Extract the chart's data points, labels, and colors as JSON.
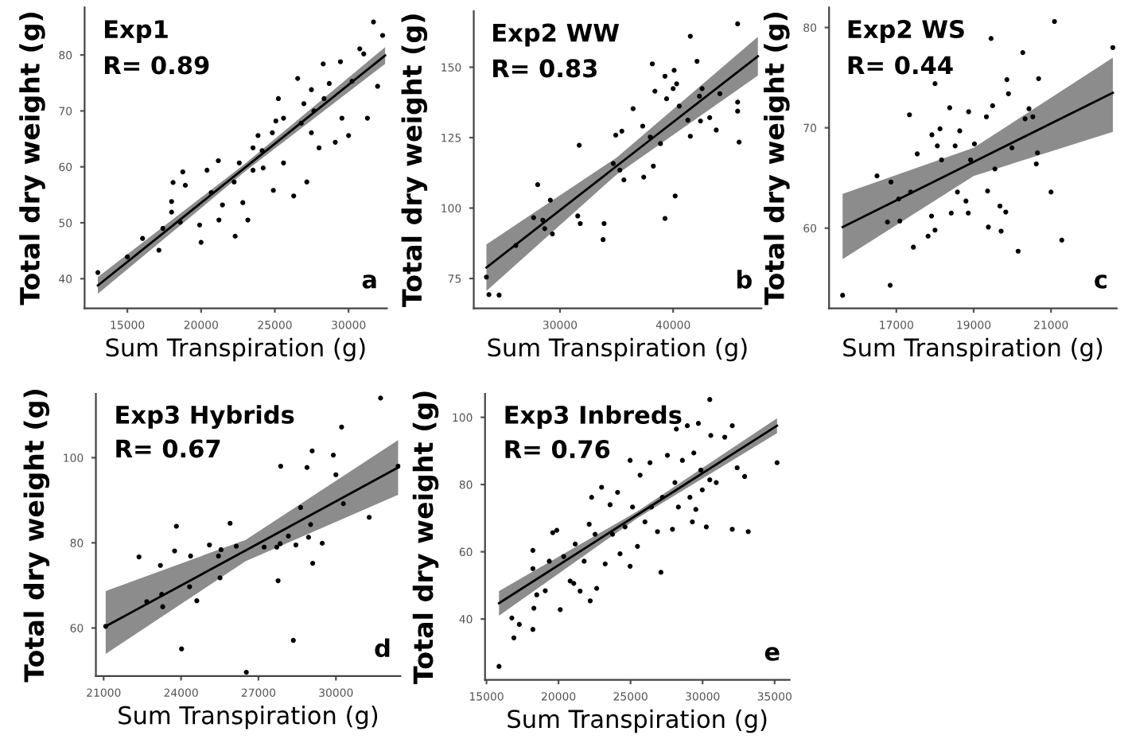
{
  "chart_data": [
    {
      "type": "scatter",
      "title": "Exp1",
      "subtitle": "R= 0.89",
      "xlabel": "Sum Transpiration (g)",
      "ylabel": "Total dry weight (g)",
      "annotations": [
        "a"
      ],
      "legend": false,
      "xlim": [
        12100,
        32600
      ],
      "ylim": [
        34.7,
        88.5
      ],
      "xticks": [
        15000,
        20000,
        25000,
        30000
      ],
      "yticks": [
        40,
        50,
        60,
        70,
        80
      ],
      "series": [
        {
          "type": "scatter",
          "marker": "circle",
          "color": "#000000",
          "x": [
            13000,
            15000,
            16030,
            17140,
            17410,
            18000,
            18100,
            18760,
            18930,
            18590,
            19900,
            20000,
            20400,
            20690,
            21210,
            21450,
            21170,
            22310,
            22240,
            22590,
            23170,
            23520,
            23860,
            24140,
            24830,
            24900,
            25070,
            25240,
            25590,
            26280,
            26550,
            26790,
            27170,
            27480,
            27480,
            28000,
            28280,
            28340,
            28690,
            29100,
            29450,
            29550,
            30000,
            30240,
            30760,
            31030,
            31280,
            31690,
            31970,
            32310,
            18000,
            22830,
            26970,
            25590,
            23520,
            27650,
            24210
          ],
          "values": [
            41.1,
            43.9,
            47.2,
            45.1,
            49,
            53.8,
            57.2,
            59.1,
            56.7,
            50.1,
            49.6,
            46.5,
            59.4,
            55.4,
            50.5,
            53.2,
            61.1,
            47.6,
            57.3,
            60.7,
            50.5,
            59.4,
            65.6,
            62.9,
            66.1,
            55.8,
            68.2,
            72.2,
            60.7,
            54.8,
            75.8,
            67.8,
            57.3,
            73.8,
            66.1,
            63.4,
            78.4,
            72.2,
            74.9,
            64.4,
            78.8,
            68.7,
            65.6,
            75.3,
            81.1,
            80.2,
            68.7,
            85.9,
            74.4,
            83.5,
            51.9,
            53.6,
            71.3,
            68.7,
            63.4,
            70,
            59.8
          ]
        },
        {
          "type": "line",
          "color": "#000000",
          "x": [
            13000,
            23000,
            32480
          ],
          "values": [
            38.8,
            59.9,
            79.9
          ],
          "lower": [
            37.3,
            59.2,
            78.4
          ],
          "upper": [
            40.3,
            60.6,
            81.4
          ]
        }
      ]
    },
    {
      "type": "scatter",
      "title": "Exp2 WW",
      "subtitle": "R= 0.83",
      "xlabel": "Sum Transpiration (g)",
      "ylabel": "Total dry weight (g)",
      "annotations": [
        "b"
      ],
      "legend": false,
      "xlim": [
        22380,
        47800
      ],
      "ylim": [
        64.4,
        169.9
      ],
      "xticks": [
        30000,
        40000
      ],
      "yticks": [
        75,
        100,
        125,
        150
      ],
      "series": [
        {
          "type": "scatter",
          "marker": "circle",
          "color": "#000000",
          "x": [
            23500,
            23720,
            24620,
            26100,
            27670,
            28030,
            28480,
            28650,
            29150,
            29330,
            31570,
            31700,
            31790,
            33810,
            33900,
            34710,
            34930,
            35290,
            35470,
            35650,
            36460,
            37310,
            37400,
            37980,
            38160,
            38250,
            38390,
            38880,
            39280,
            39420,
            39280,
            40000,
            40090,
            40180,
            40310,
            40540,
            41300,
            41520,
            41520,
            42110,
            42330,
            42420,
            42560,
            43230,
            43810,
            44130,
            45700,
            45700,
            45700,
            45830
          ],
          "values": [
            75.5,
            69.3,
            69.1,
            86.7,
            96.6,
            108.3,
            95.7,
            92.7,
            102.8,
            90.8,
            97.2,
            122.3,
            94.5,
            88.8,
            94.5,
            115.8,
            125.9,
            113.5,
            127.3,
            110,
            135.3,
            129.1,
            111,
            125.2,
            151.2,
            114.9,
            141.5,
            122.9,
            146.8,
            138.8,
            96.3,
            142.4,
            148.9,
            104.3,
            144.1,
            136.2,
            131.2,
            125.5,
            161,
            152.1,
            139.7,
            130.9,
            142.4,
            132.1,
            127.7,
            140.6,
            165.4,
            137.6,
            134.4,
            123.4
          ]
        },
        {
          "type": "line",
          "color": "#000000",
          "x": [
            23500,
            35000,
            47490
          ],
          "values": [
            78.9,
            114.9,
            153.9
          ],
          "lower": [
            70.6,
            111.9,
            147.0
          ],
          "upper": [
            87.1,
            117.9,
            160.8
          ]
        }
      ]
    },
    {
      "type": "scatter",
      "title": "Exp2 WS",
      "subtitle": "R= 0.44",
      "xlabel": "Sum Transpiration (g)",
      "ylabel": "Total dry weight (g)",
      "annotations": [
        "c"
      ],
      "legend": false,
      "xlim": [
        15260,
        22700
      ],
      "ylim": [
        52.0,
        82.0
      ],
      "xticks": [
        17000,
        19000,
        21000
      ],
      "yticks": [
        60,
        70,
        80
      ],
      "series": [
        {
          "type": "scatter",
          "marker": "circle",
          "color": "#000000",
          "x": [
            15610,
            16500,
            16860,
            16770,
            16840,
            17060,
            17090,
            17340,
            17370,
            17440,
            17540,
            17820,
            17910,
            17920,
            18000,
            18000,
            18060,
            18130,
            18170,
            18380,
            18420,
            18520,
            18580,
            18640,
            18800,
            18860,
            18870,
            18920,
            19020,
            19330,
            19360,
            19380,
            19450,
            19490,
            19550,
            19680,
            19710,
            19830,
            19860,
            19900,
            19990,
            20150,
            20270,
            20330,
            20430,
            20530,
            20620,
            20650,
            20680,
            21000,
            21090,
            21280,
            22600
          ],
          "values": [
            53.3,
            65.2,
            64.6,
            60.6,
            54.3,
            62.9,
            60.7,
            71.3,
            63.6,
            58.1,
            67.4,
            59.2,
            61.2,
            69.3,
            74.4,
            59.8,
            68.2,
            69.9,
            66.8,
            72,
            61.5,
            68.2,
            63.6,
            69.7,
            62.7,
            61.5,
            71.6,
            66.8,
            68.4,
            71.1,
            63.7,
            60.1,
            78.9,
            72.2,
            65.9,
            62.2,
            59.7,
            61.6,
            74.8,
            73.4,
            68,
            57.7,
            77.5,
            70.9,
            71.9,
            71.1,
            66.4,
            67.5,
            74.9,
            63.6,
            80.6,
            58.8,
            78
          ]
        },
        {
          "type": "line",
          "color": "#000000",
          "x": [
            15610,
            19000,
            22600
          ],
          "values": [
            60.1,
            66.6,
            73.5
          ],
          "lower": [
            56.9,
            65.2,
            69.6
          ],
          "upper": [
            63.4,
            68.0,
            77.0
          ]
        }
      ]
    },
    {
      "type": "scatter",
      "title": "Exp3 Hybrids",
      "subtitle": "R= 0.67",
      "xlabel": "Sum Transpiration (g)",
      "ylabel": "Total dry weight (g)",
      "annotations": [
        "d"
      ],
      "legend": false,
      "xlim": [
        20700,
        32500
      ],
      "ylim": [
        48.7,
        115
      ],
      "xticks": [
        21000,
        24000,
        27000,
        30000
      ],
      "yticks": [
        60,
        80,
        100
      ],
      "series": [
        {
          "type": "scatter",
          "marker": "circle",
          "color": "#000000",
          "x": [
            21080,
            22370,
            22670,
            23200,
            23250,
            23290,
            23750,
            23820,
            24020,
            24330,
            24370,
            24610,
            25100,
            25450,
            25510,
            25550,
            25900,
            26140,
            26530,
            27220,
            27710,
            27760,
            27840,
            27860,
            28160,
            28350,
            28450,
            28630,
            29100,
            28880,
            28940,
            29020,
            29080,
            29470,
            29900,
            30000,
            30290,
            30220,
            31290,
            31730,
            32410
          ],
          "values": [
            60.4,
            76.7,
            66.2,
            74.7,
            67.9,
            65,
            78.1,
            83.9,
            55.1,
            69.7,
            76.9,
            66.4,
            79.5,
            76.9,
            71.8,
            78.4,
            84.6,
            79.2,
            49.6,
            79,
            79,
            71.1,
            79.8,
            98,
            81.6,
            57.1,
            79.5,
            88.3,
            75.2,
            97.7,
            81.3,
            84.3,
            101.6,
            79.9,
            100.6,
            96,
            89.2,
            107.2,
            86,
            114,
            98
          ]
        },
        {
          "type": "line",
          "color": "#000000",
          "x": [
            21080,
            26500,
            32410
          ],
          "values": [
            60.4,
            78.2,
            97.7
          ],
          "lower": [
            53.9,
            75.7,
            91.3
          ],
          "upper": [
            68.7,
            80.7,
            104.1
          ]
        }
      ]
    },
    {
      "type": "scatter",
      "title": "Exp3 Inbreds",
      "subtitle": "R= 0.76",
      "xlabel": "Sum Transpiration (g)",
      "ylabel": "Total dry weight (g)",
      "annotations": [
        "e"
      ],
      "legend": false,
      "xlim": [
        14900,
        36040
      ],
      "ylim": [
        21.9,
        107
      ],
      "xticks": [
        15000,
        20000,
        25000,
        30000,
        35000
      ],
      "yticks": [
        40,
        60,
        80,
        100
      ],
      "series": [
        {
          "type": "scatter",
          "marker": "circle",
          "color": "#000000",
          "x": [
            15870,
            16760,
            16900,
            17280,
            18220,
            18220,
            18220,
            18290,
            18490,
            19080,
            19360,
            19600,
            19880,
            20120,
            20360,
            20810,
            21060,
            21160,
            21500,
            21780,
            22130,
            22200,
            22300,
            22540,
            22650,
            22990,
            23240,
            23580,
            23750,
            24100,
            24270,
            24620,
            24970,
            24970,
            25140,
            25480,
            25660,
            26000,
            26350,
            26450,
            26870,
            27110,
            27210,
            27560,
            27910,
            28080,
            28180,
            28320,
            28600,
            28940,
            29120,
            29290,
            29390,
            29530,
            29710,
            29880,
            29980,
            30260,
            30500,
            30570,
            30950,
            31540,
            32060,
            32060,
            32400,
            32920,
            33170,
            30500,
            35170
          ],
          "values": [
            25.9,
            40.3,
            34.4,
            38.4,
            55,
            60.4,
            36.9,
            43.2,
            47.2,
            48.4,
            57.2,
            65.7,
            66.4,
            42.8,
            58.6,
            51.3,
            50.6,
            62.3,
            48.3,
            57.2,
            68.2,
            45.4,
            76.2,
            65.2,
            49.1,
            79.2,
            56.4,
            74,
            65.2,
            77.7,
            59.4,
            67.4,
            87.2,
            55.7,
            73.3,
            61.6,
            82.8,
            68.9,
            86.5,
            73.3,
            66,
            53.9,
            76.2,
            88.7,
            66.7,
            80.6,
            96.5,
            73.3,
            87.2,
            97.5,
            76.2,
            68.9,
            89.4,
            72.6,
            98.2,
            84.3,
            78.4,
            67.4,
            81.4,
            94.6,
            80.6,
            94.1,
            66.7,
            97.5,
            85,
            82.4,
            66,
            105.3,
            86.5
          ]
        },
        {
          "type": "line",
          "color": "#000000",
          "x": [
            15870,
            25500,
            35170
          ],
          "values": [
            44.7,
            71.1,
            97.5
          ],
          "lower": [
            41.0,
            70.1,
            95.3
          ],
          "upper": [
            48.3,
            72.1,
            99.7
          ]
        }
      ]
    }
  ]
}
